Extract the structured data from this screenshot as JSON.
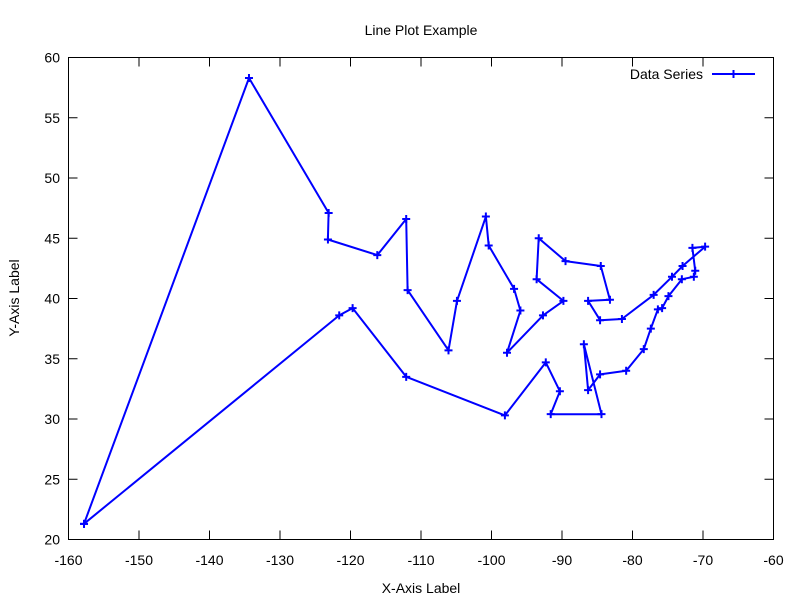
{
  "chart_data": {
    "type": "line",
    "title": "Line Plot Example",
    "xlabel": "X-Axis Label",
    "ylabel": "Y-Axis Label",
    "xlim": [
      -160,
      -60
    ],
    "ylim": [
      20,
      60
    ],
    "xticks": [
      -160,
      -150,
      -140,
      -130,
      -120,
      -110,
      -100,
      -90,
      -80,
      -70,
      -60
    ],
    "yticks": [
      20,
      25,
      30,
      35,
      40,
      45,
      50,
      55,
      60
    ],
    "grid": false,
    "legend_position": "top-right",
    "series_color": "#0000ff",
    "series": [
      {
        "name": "Data Series",
        "x": [
          -157.8,
          -134.4,
          -123.1,
          -123.2,
          -116.2,
          -112.1,
          -111.9,
          -106.1,
          -104.9,
          -100.8,
          -100.4,
          -96.8,
          -95.9,
          -97.8,
          -92.7,
          -89.8,
          -93.6,
          -93.3,
          -89.5,
          -84.5,
          -83.2,
          -86.3,
          -84.6,
          -81.5,
          -77.0,
          -74.4,
          -72.9,
          -69.7,
          -71.5,
          -71.1,
          -71.3,
          -73.0,
          -74.9,
          -75.8,
          -76.4,
          -77.4,
          -78.4,
          -80.9,
          -84.6,
          -86.3,
          -86.9,
          -84.4,
          -91.6,
          -90.3,
          -92.3,
          -98.1,
          -112.1,
          -119.7,
          -121.6,
          -157.8
        ],
        "y": [
          21.3,
          58.3,
          47.1,
          44.9,
          43.6,
          46.6,
          40.7,
          35.7,
          39.8,
          46.8,
          44.4,
          40.8,
          39.0,
          35.5,
          38.6,
          39.8,
          41.6,
          45.0,
          43.1,
          42.7,
          39.9,
          39.8,
          38.2,
          38.3,
          40.3,
          41.8,
          42.7,
          44.3,
          44.2,
          42.3,
          41.8,
          41.6,
          40.2,
          39.2,
          39.1,
          37.5,
          35.8,
          34.0,
          33.7,
          32.4,
          36.2,
          30.4,
          30.4,
          32.3,
          34.7,
          30.3,
          33.5,
          39.2,
          38.6,
          21.3
        ]
      }
    ]
  }
}
